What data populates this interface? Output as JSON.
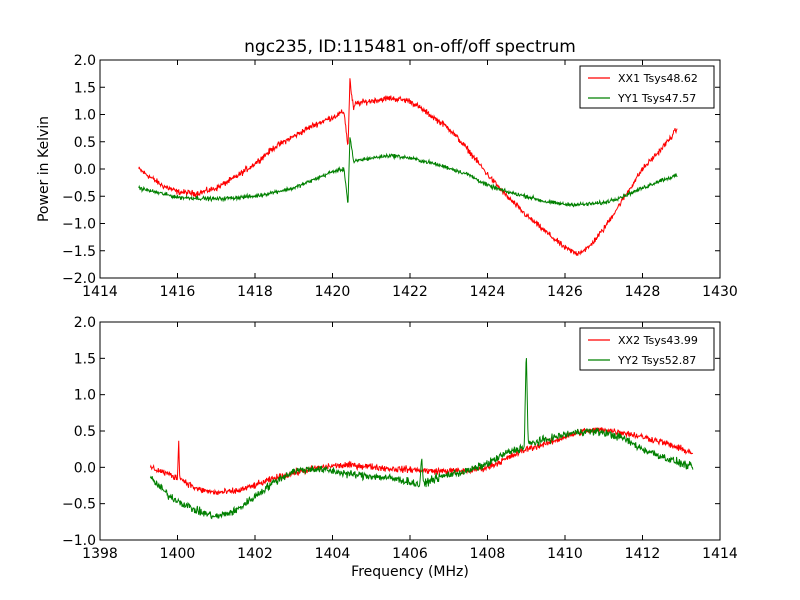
{
  "chart_data": [
    {
      "type": "line",
      "title": "ngc235, ID:115481 on-off/off spectrum",
      "xlabel": "",
      "ylabel": "Power in Kelvin",
      "xlim": [
        1414,
        1430
      ],
      "ylim": [
        -2.0,
        2.0
      ],
      "xticks": [
        1414,
        1416,
        1418,
        1420,
        1422,
        1424,
        1426,
        1428,
        1430
      ],
      "yticks": [
        -2.0,
        -1.5,
        -1.0,
        -0.5,
        0.0,
        0.5,
        1.0,
        1.5,
        2.0
      ],
      "legend_position": "top-right",
      "series": [
        {
          "name": "XX1 Tsys48.62",
          "color": "#ff0000",
          "noise": 0.06,
          "x": [
            1415.0,
            1415.3,
            1415.6,
            1416.0,
            1416.5,
            1417.0,
            1417.5,
            1418.0,
            1418.5,
            1419.0,
            1419.5,
            1420.0,
            1420.3,
            1420.4,
            1420.45,
            1420.5,
            1420.55,
            1420.6,
            1421.0,
            1421.5,
            1422.0,
            1422.5,
            1423.0,
            1423.5,
            1424.0,
            1424.5,
            1425.0,
            1425.5,
            1426.0,
            1426.3,
            1426.6,
            1427.0,
            1427.5,
            1428.0,
            1428.4,
            1428.7,
            1428.9
          ],
          "y": [
            0.0,
            -0.15,
            -0.3,
            -0.42,
            -0.45,
            -0.35,
            -0.15,
            0.1,
            0.4,
            0.6,
            0.8,
            0.95,
            1.05,
            0.4,
            1.65,
            1.3,
            1.1,
            1.2,
            1.25,
            1.3,
            1.25,
            1.0,
            0.75,
            0.35,
            -0.1,
            -0.5,
            -0.85,
            -1.15,
            -1.45,
            -1.55,
            -1.45,
            -1.1,
            -0.55,
            0.0,
            0.3,
            0.55,
            0.75
          ]
        },
        {
          "name": "YY1 Tsys47.57",
          "color": "#008000",
          "noise": 0.04,
          "x": [
            1415.0,
            1416.0,
            1417.0,
            1418.0,
            1419.0,
            1420.0,
            1420.3,
            1420.4,
            1420.45,
            1420.5,
            1420.55,
            1420.6,
            1421.0,
            1421.5,
            1422.0,
            1422.5,
            1423.0,
            1423.5,
            1424.0,
            1424.5,
            1425.0,
            1425.5,
            1426.0,
            1426.5,
            1427.0,
            1427.5,
            1428.0,
            1428.5,
            1428.9
          ],
          "y": [
            -0.35,
            -0.52,
            -0.55,
            -0.5,
            -0.35,
            -0.05,
            0.0,
            -0.65,
            0.6,
            0.35,
            0.1,
            0.15,
            0.2,
            0.25,
            0.2,
            0.12,
            0.02,
            -0.1,
            -0.3,
            -0.42,
            -0.5,
            -0.6,
            -0.65,
            -0.65,
            -0.62,
            -0.5,
            -0.35,
            -0.2,
            -0.12
          ]
        }
      ]
    },
    {
      "type": "line",
      "title": "",
      "xlabel": "Frequency (MHz)",
      "ylabel": "",
      "xlim": [
        1398,
        1414
      ],
      "ylim": [
        -1.0,
        2.0
      ],
      "xticks": [
        1398,
        1400,
        1402,
        1404,
        1406,
        1408,
        1410,
        1412,
        1414
      ],
      "yticks": [
        -1.0,
        -0.5,
        0.0,
        0.5,
        1.0,
        1.5,
        2.0
      ],
      "legend_position": "top-right",
      "series": [
        {
          "name": "XX2 Tsys43.99",
          "color": "#ff0000",
          "noise": 0.05,
          "x": [
            1399.3,
            1399.8,
            1400.0,
            1400.03,
            1400.06,
            1400.5,
            1401.0,
            1401.5,
            1402.0,
            1402.5,
            1403.0,
            1403.5,
            1404.0,
            1404.5,
            1405.0,
            1405.5,
            1406.0,
            1406.5,
            1407.0,
            1407.5,
            1408.0,
            1408.5,
            1409.0,
            1409.5,
            1410.0,
            1410.5,
            1411.0,
            1411.5,
            1412.0,
            1412.5,
            1413.0,
            1413.3
          ],
          "y": [
            0.0,
            -0.1,
            -0.15,
            0.4,
            -0.15,
            -0.3,
            -0.35,
            -0.33,
            -0.25,
            -0.15,
            -0.08,
            -0.02,
            0.02,
            0.03,
            0.01,
            -0.02,
            -0.03,
            -0.05,
            -0.05,
            -0.05,
            0.0,
            0.12,
            0.25,
            0.32,
            0.42,
            0.5,
            0.52,
            0.48,
            0.42,
            0.35,
            0.25,
            0.2
          ]
        },
        {
          "name": "YY2 Tsys52.87",
          "color": "#008000",
          "noise": 0.06,
          "x": [
            1399.3,
            1399.8,
            1400.5,
            1401.0,
            1401.5,
            1402.0,
            1402.5,
            1403.0,
            1403.5,
            1404.0,
            1404.5,
            1405.0,
            1405.5,
            1406.0,
            1406.25,
            1406.3,
            1406.35,
            1406.5,
            1407.0,
            1407.5,
            1408.0,
            1408.5,
            1408.95,
            1409.0,
            1409.05,
            1409.5,
            1410.0,
            1410.5,
            1411.0,
            1411.5,
            1412.0,
            1412.5,
            1413.0,
            1413.3
          ],
          "y": [
            -0.15,
            -0.4,
            -0.6,
            -0.68,
            -0.6,
            -0.4,
            -0.2,
            -0.05,
            -0.02,
            -0.05,
            -0.1,
            -0.12,
            -0.15,
            -0.2,
            -0.25,
            0.15,
            -0.25,
            -0.18,
            -0.1,
            -0.05,
            0.05,
            0.2,
            0.28,
            1.62,
            0.32,
            0.38,
            0.45,
            0.5,
            0.48,
            0.4,
            0.25,
            0.15,
            0.05,
            0.0
          ]
        }
      ]
    }
  ]
}
